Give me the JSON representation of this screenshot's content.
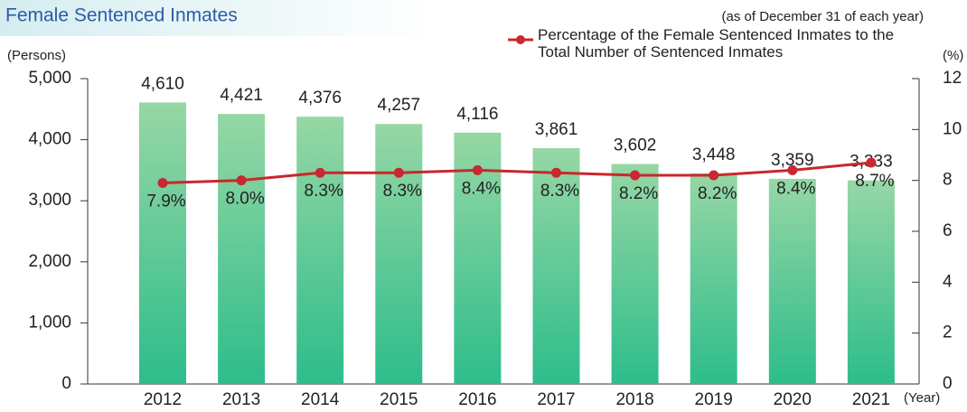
{
  "chart_data": {
    "type": "bar",
    "title": "Female Sentenced Inmates",
    "subtitle": "(as of December 31 of each year)",
    "y_label": "(Persons)",
    "y2_label": "(%)",
    "x_label": "(Year)",
    "categories": [
      "2012",
      "2013",
      "2014",
      "2015",
      "2016",
      "2017",
      "2018",
      "2019",
      "2020",
      "2021"
    ],
    "series": [
      {
        "type": "bar",
        "gradient": [
          "#96d7a5",
          "#2dbd8b"
        ],
        "values": [
          4610,
          4421,
          4376,
          4257,
          4116,
          3861,
          3602,
          3448,
          3359,
          3333
        ],
        "value_labels": [
          "4,610",
          "4,421",
          "4,376",
          "4,257",
          "4,116",
          "3,861",
          "3,602",
          "3,448",
          "3,359",
          "3,333"
        ]
      },
      {
        "type": "line",
        "axis": "y2",
        "color": "#c8282e",
        "name": "Percentage of the Female Sentenced Inmates to the Total Number of Sentenced Inmates",
        "values": [
          7.9,
          8.0,
          8.3,
          8.3,
          8.4,
          8.3,
          8.2,
          8.2,
          8.4,
          8.7
        ],
        "value_labels": [
          "7.9%",
          "8.0%",
          "8.3%",
          "8.3%",
          "8.4%",
          "8.3%",
          "8.2%",
          "8.2%",
          "8.4%",
          "8.7%"
        ]
      }
    ],
    "ylim": [
      0,
      5000
    ],
    "yticks": [
      0,
      {
        "value": 1000,
        "label": "1,000"
      },
      {
        "value": 2000,
        "label": "2,000"
      },
      {
        "value": 3000,
        "label": "3,000"
      },
      {
        "value": 4000,
        "label": "4,000"
      },
      {
        "value": 5000,
        "label": "5,000"
      }
    ],
    "y2lim": [
      0,
      12
    ],
    "y2ticks": [
      0,
      2,
      4,
      6,
      8,
      10,
      12
    ]
  }
}
